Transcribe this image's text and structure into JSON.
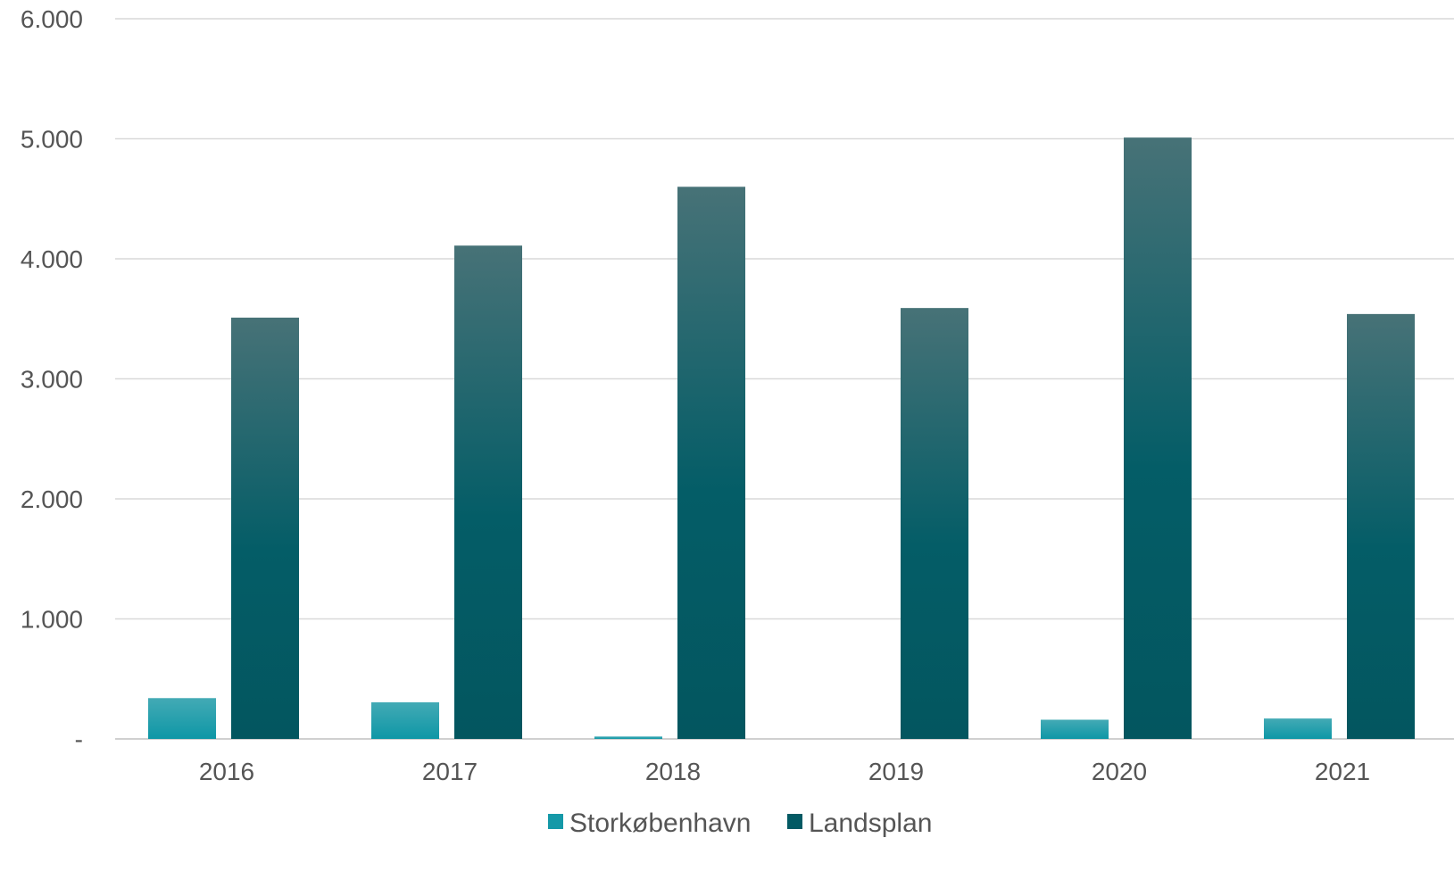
{
  "chart_data": {
    "type": "bar",
    "categories": [
      "2016",
      "2017",
      "2018",
      "2019",
      "2020",
      "2021"
    ],
    "series": [
      {
        "name": "Storkøbenhavn",
        "values": [
          340,
          305,
          20,
          0,
          160,
          170
        ]
      },
      {
        "name": "Landsplan",
        "values": [
          3510,
          4110,
          4600,
          3590,
          5010,
          3540
        ]
      }
    ],
    "ylim": [
      0,
      6000
    ],
    "yticks": [
      0,
      1000,
      2000,
      3000,
      4000,
      5000,
      6000
    ],
    "ytick_labels": [
      "-",
      "1.000",
      "2.000",
      "3.000",
      "4.000",
      "5.000",
      "6.000"
    ],
    "grid": true,
    "legend_position": "bottom",
    "colors": {
      "Storkøbenhavn": "#1599a8",
      "Landsplan": "#035a64",
      "grid": "#d9d9d9",
      "text": "#555555"
    }
  }
}
